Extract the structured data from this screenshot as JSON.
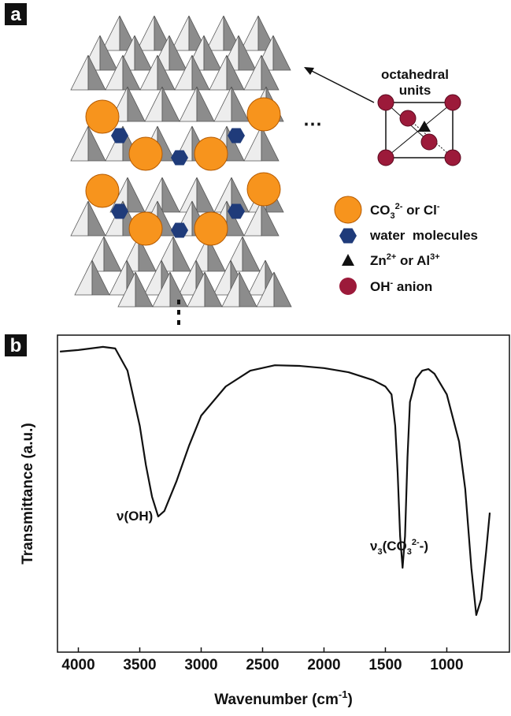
{
  "panel_a": {
    "label": "a",
    "inset_title": [
      "octahedral",
      "units"
    ],
    "legend": [
      [
        "CO",
        "3",
        "2-",
        " or Cl",
        "-"
      ],
      [
        "water  molecules"
      ],
      [
        "Zn",
        "2+",
        " or Al",
        "3+"
      ],
      [
        "OH",
        "-",
        " anion"
      ]
    ]
  },
  "chart_data": {
    "type": "line",
    "label": "b",
    "x_label": [
      "Wavenumber (cm",
      "-1",
      ")"
    ],
    "y_label": "Transmittance (a.u.)",
    "annotations": [
      [
        "ν(OH)"
      ],
      [
        "ν",
        "3",
        "(CO",
        "3",
        "2-",
        "-)"
      ]
    ],
    "x": [
      4150,
      4000,
      3800,
      3700,
      3600,
      3500,
      3450,
      3400,
      3350,
      3300,
      3200,
      3100,
      3000,
      2800,
      2600,
      2400,
      2200,
      2000,
      1800,
      1600,
      1500,
      1450,
      1420,
      1400,
      1380,
      1360,
      1340,
      1320,
      1300,
      1250,
      1200,
      1150,
      1100,
      1000,
      900,
      850,
      800,
      760,
      720,
      680,
      650
    ],
    "series": [
      {
        "color": "#111111",
        "values": [
          94.8,
          95.3,
          96.3,
          95.8,
          88.8,
          71.4,
          59,
          49,
          42.8,
          44.5,
          54,
          65,
          74.6,
          83.8,
          88.8,
          90.5,
          90.3,
          89.6,
          88.3,
          85.8,
          83.8,
          81.3,
          71.4,
          56.5,
          36.6,
          26.6,
          36.6,
          61.4,
          78.9,
          86.3,
          88.8,
          89.3,
          87.8,
          81.3,
          66.4,
          51.5,
          26.6,
          11.7,
          16.7,
          31.6,
          44
        ]
      }
    ],
    "xlim": [
      4170,
      490
    ],
    "ylim": [
      0,
      100
    ],
    "xticks": [
      4000,
      3500,
      3000,
      2500,
      2000,
      1500,
      1000
    ]
  }
}
